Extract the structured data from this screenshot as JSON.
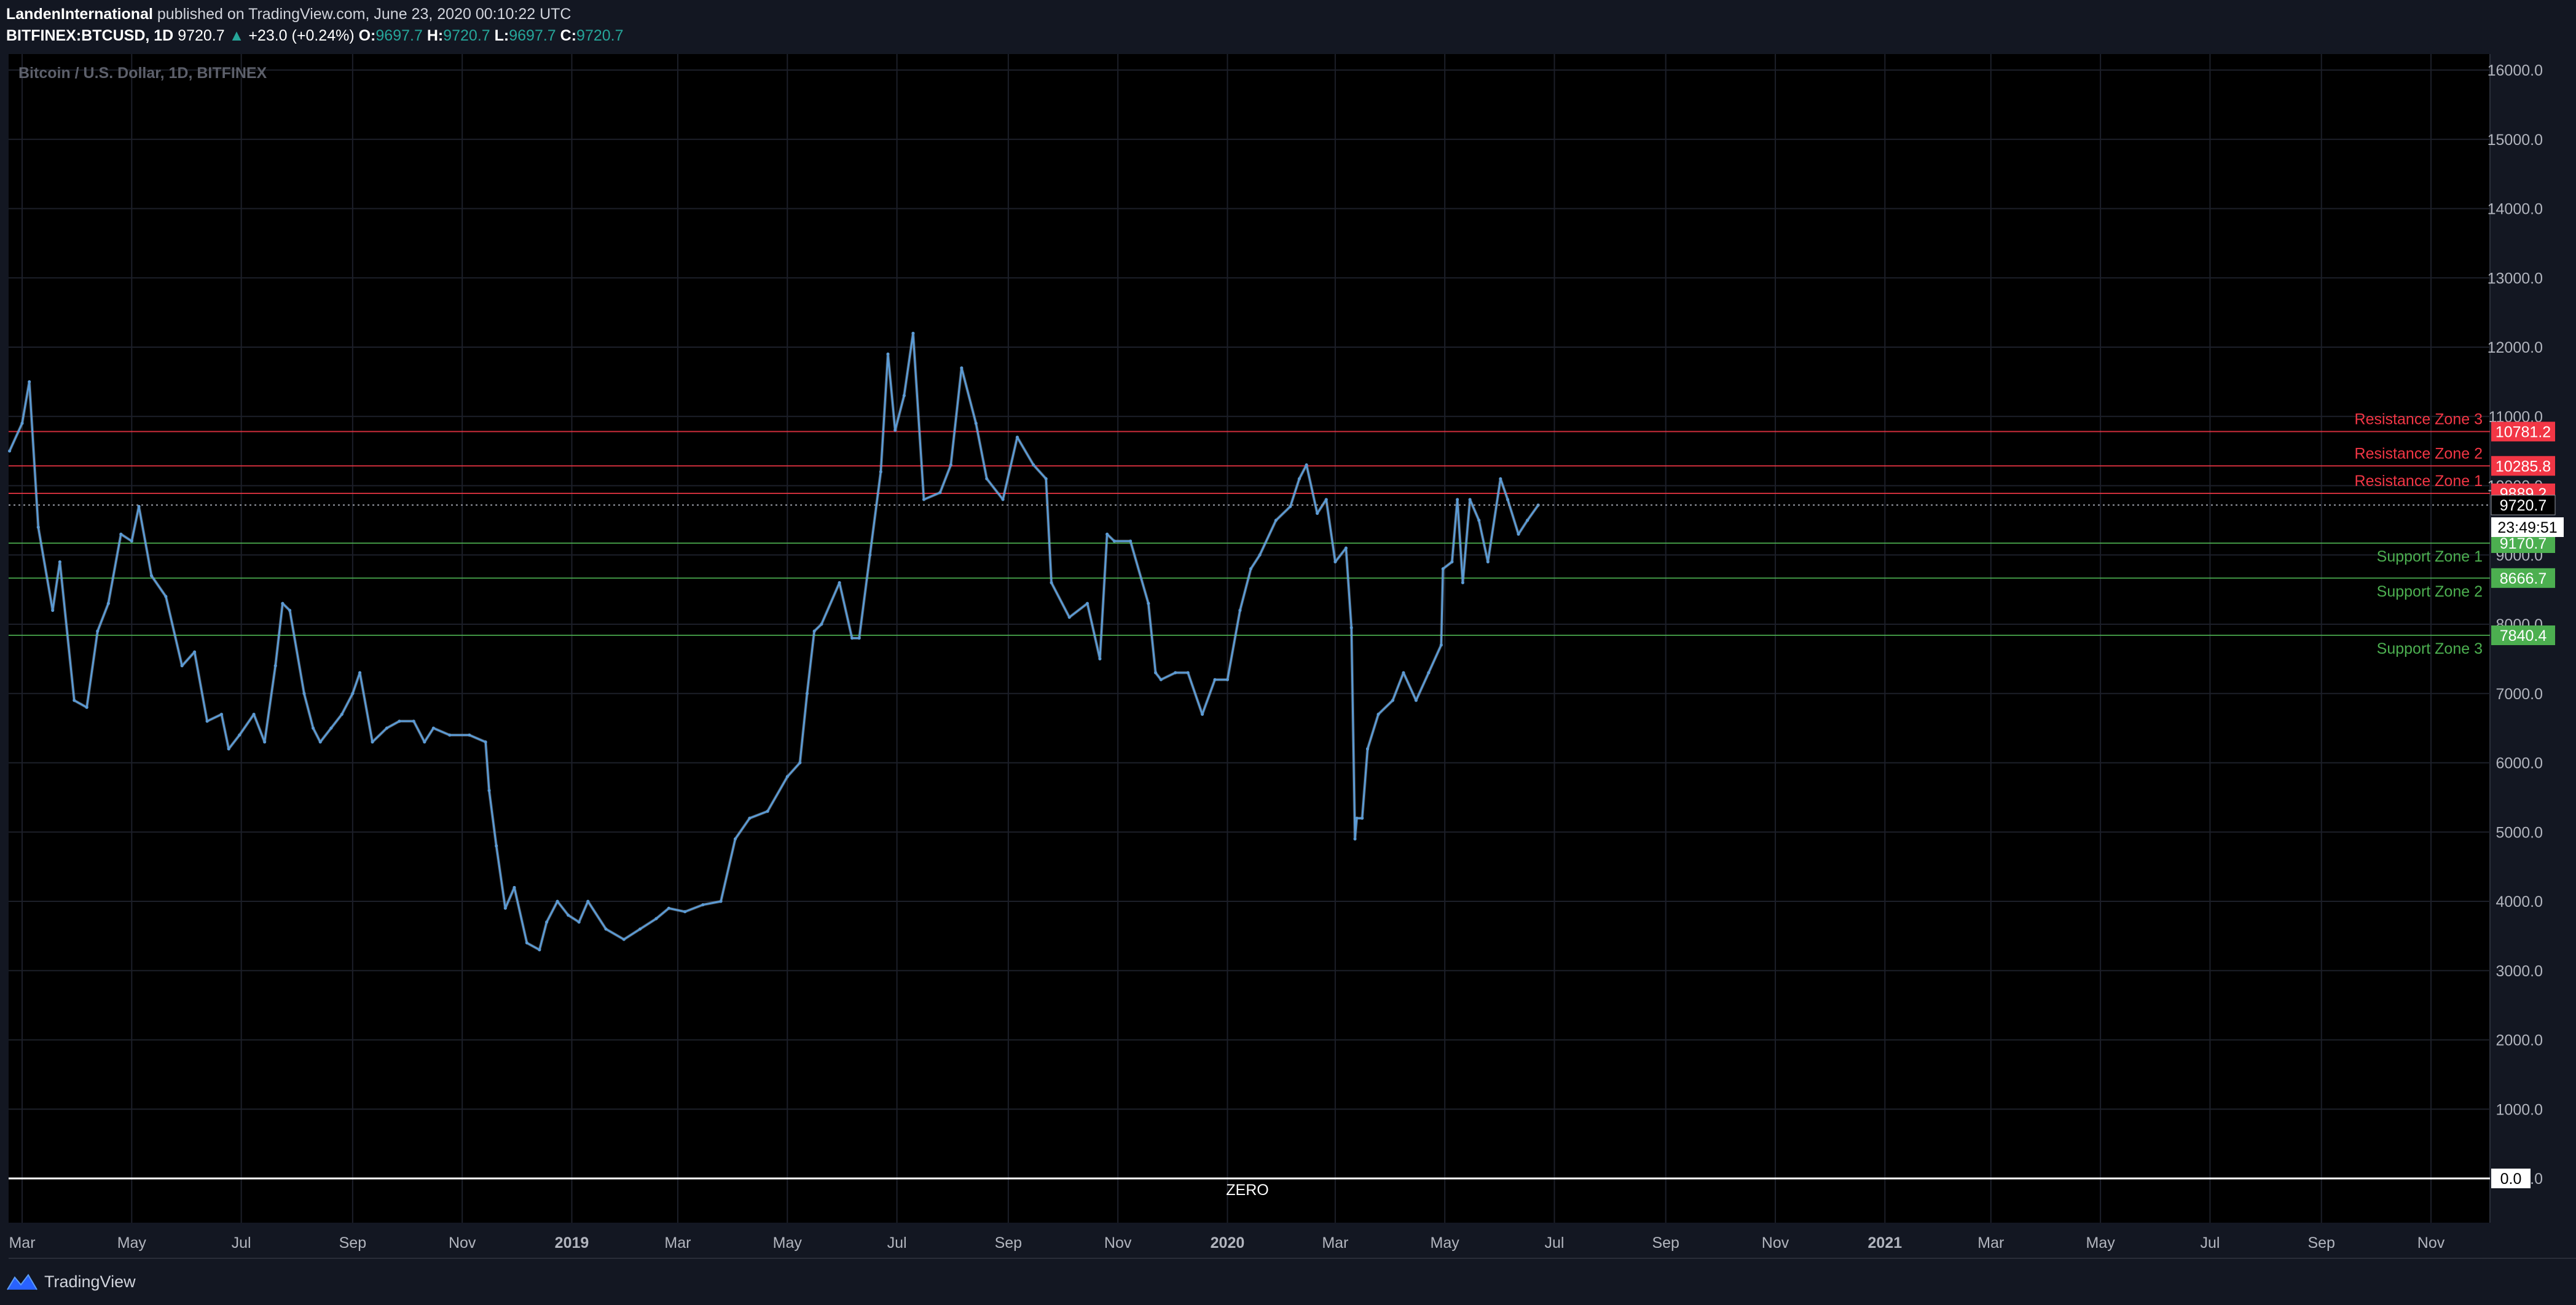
{
  "header": {
    "publisher": "LandenInternational",
    "publish_text": "published on TradingView.com, June 23, 2020 00:10:22 UTC",
    "symbol": "BITFINEX:BTCUSD, 1D",
    "last": "9720.7",
    "change_arrow": "▲",
    "change": "+23.0 (+0.24%)",
    "o_label": "O:",
    "o_value": "9697.7",
    "h_label": "H:",
    "h_value": "9720.7",
    "l_label": "L:",
    "l_value": "9697.7",
    "c_label": "C:",
    "c_value": "9720.7"
  },
  "footer": {
    "brand": "TradingView",
    "logo_icon": "tradingview-logo-icon"
  },
  "colors": {
    "background": "#000000",
    "frame": "#131722",
    "price_line": "#5b9bd5",
    "price_highlight": "#dfe7f5",
    "resistance": "#f23645",
    "support": "#4caf50",
    "grid": "#1c1f29"
  },
  "chart_data": {
    "type": "line",
    "title": "Bitcoin / U.S. Dollar, 1D, BITFINEX",
    "xlabel": "",
    "ylabel": "",
    "ylim": [
      0,
      16000
    ],
    "y_ticks": [
      "0.0",
      "1000.0",
      "2000.0",
      "3000.0",
      "4000.0",
      "5000.0",
      "6000.0",
      "7000.0",
      "8000.0",
      "9000.0",
      "10000.0",
      "11000.0",
      "12000.0",
      "13000.0",
      "14000.0",
      "15000.0",
      "16000.0"
    ],
    "x_ticks": [
      {
        "date": "2018-03-01",
        "label": "Mar"
      },
      {
        "date": "2018-05-01",
        "label": "May"
      },
      {
        "date": "2018-07-01",
        "label": "Jul"
      },
      {
        "date": "2018-09-01",
        "label": "Sep"
      },
      {
        "date": "2018-11-01",
        "label": "Nov"
      },
      {
        "date": "2019-01-01",
        "label": "2019"
      },
      {
        "date": "2019-03-01",
        "label": "Mar"
      },
      {
        "date": "2019-05-01",
        "label": "May"
      },
      {
        "date": "2019-07-01",
        "label": "Jul"
      },
      {
        "date": "2019-09-01",
        "label": "Sep"
      },
      {
        "date": "2019-11-01",
        "label": "Nov"
      },
      {
        "date": "2020-01-01",
        "label": "2020"
      },
      {
        "date": "2020-03-01",
        "label": "Mar"
      },
      {
        "date": "2020-05-01",
        "label": "May"
      },
      {
        "date": "2020-07-01",
        "label": "Jul"
      },
      {
        "date": "2020-09-01",
        "label": "Sep"
      },
      {
        "date": "2020-11-01",
        "label": "Nov"
      },
      {
        "date": "2021-01-01",
        "label": "2021"
      },
      {
        "date": "2021-03-01",
        "label": "Mar"
      },
      {
        "date": "2021-05-01",
        "label": "May"
      },
      {
        "date": "2021-07-01",
        "label": "Jul"
      },
      {
        "date": "2021-09-01",
        "label": "Sep"
      },
      {
        "date": "2021-11-01",
        "label": "Nov"
      }
    ],
    "series": [
      {
        "x": [
          "2018-02-22",
          "2018-03-01",
          "2018-03-05",
          "2018-03-10",
          "2018-03-18",
          "2018-03-22",
          "2018-03-30",
          "2018-04-06",
          "2018-04-12",
          "2018-04-18",
          "2018-04-25",
          "2018-05-01",
          "2018-05-05",
          "2018-05-12",
          "2018-05-20",
          "2018-05-29",
          "2018-06-05",
          "2018-06-12",
          "2018-06-20",
          "2018-06-24",
          "2018-06-30",
          "2018-07-08",
          "2018-07-14",
          "2018-07-20",
          "2018-07-24",
          "2018-07-28",
          "2018-08-05",
          "2018-08-10",
          "2018-08-14",
          "2018-08-20",
          "2018-08-26",
          "2018-09-01",
          "2018-09-05",
          "2018-09-12",
          "2018-09-20",
          "2018-09-27",
          "2018-10-05",
          "2018-10-11",
          "2018-10-16",
          "2018-10-25",
          "2018-11-05",
          "2018-11-14",
          "2018-11-16",
          "2018-11-20",
          "2018-11-25",
          "2018-11-30",
          "2018-12-07",
          "2018-12-14",
          "2018-12-18",
          "2018-12-24",
          "2018-12-30",
          "2019-01-05",
          "2019-01-10",
          "2019-01-20",
          "2019-01-30",
          "2019-02-08",
          "2019-02-17",
          "2019-02-24",
          "2019-03-05",
          "2019-03-15",
          "2019-03-25",
          "2019-04-02",
          "2019-04-10",
          "2019-04-20",
          "2019-05-01",
          "2019-05-08",
          "2019-05-12",
          "2019-05-16",
          "2019-05-20",
          "2019-05-30",
          "2019-06-06",
          "2019-06-10",
          "2019-06-16",
          "2019-06-22",
          "2019-06-26",
          "2019-06-30",
          "2019-07-05",
          "2019-07-10",
          "2019-07-16",
          "2019-07-25",
          "2019-07-31",
          "2019-08-06",
          "2019-08-14",
          "2019-08-20",
          "2019-08-29",
          "2019-09-06",
          "2019-09-15",
          "2019-09-22",
          "2019-09-25",
          "2019-10-05",
          "2019-10-15",
          "2019-10-22",
          "2019-10-26",
          "2019-10-30",
          "2019-11-08",
          "2019-11-18",
          "2019-11-22",
          "2019-11-25",
          "2019-12-03",
          "2019-12-10",
          "2019-12-18",
          "2019-12-25",
          "2020-01-01",
          "2020-01-08",
          "2020-01-14",
          "2020-01-19",
          "2020-01-28",
          "2020-02-05",
          "2020-02-10",
          "2020-02-14",
          "2020-02-20",
          "2020-02-25",
          "2020-03-01",
          "2020-03-07",
          "2020-03-10",
          "2020-03-12",
          "2020-03-13",
          "2020-03-16",
          "2020-03-19",
          "2020-03-25",
          "2020-04-02",
          "2020-04-08",
          "2020-04-15",
          "2020-04-22",
          "2020-04-29",
          "2020-04-30",
          "2020-05-05",
          "2020-05-08",
          "2020-05-11",
          "2020-05-15",
          "2020-05-20",
          "2020-05-25",
          "2020-06-01",
          "2020-06-05",
          "2020-06-11",
          "2020-06-16",
          "2020-06-22"
        ],
        "values": [
          10500,
          10900,
          11500,
          9400,
          8200,
          8900,
          6900,
          6800,
          7900,
          8300,
          9300,
          9200,
          9700,
          8700,
          8400,
          7400,
          7600,
          6600,
          6700,
          6200,
          6400,
          6700,
          6300,
          7400,
          8300,
          8200,
          7000,
          6500,
          6300,
          6500,
          6700,
          7000,
          7300,
          6300,
          6500,
          6600,
          6600,
          6300,
          6500,
          6400,
          6400,
          6300,
          5600,
          4800,
          3900,
          4200,
          3400,
          3300,
          3700,
          4000,
          3800,
          3700,
          4000,
          3600,
          3450,
          3600,
          3750,
          3900,
          3850,
          3950,
          4000,
          4900,
          5200,
          5300,
          5800,
          6000,
          7000,
          7900,
          8000,
          8600,
          7800,
          7800,
          9000,
          10200,
          11900,
          10800,
          11300,
          12200,
          9800,
          9900,
          10300,
          11700,
          10900,
          10100,
          9800,
          10700,
          10300,
          10100,
          8600,
          8100,
          8300,
          7500,
          9300,
          9200,
          9200,
          8300,
          7300,
          7200,
          7300,
          7300,
          6700,
          7200,
          7200,
          8200,
          8800,
          9000,
          9500,
          9700,
          10100,
          10300,
          9600,
          9800,
          8900,
          9100,
          7950,
          4900,
          5200,
          5200,
          6200,
          6700,
          6900,
          7300,
          6900,
          7300,
          7700,
          8800,
          8900,
          9800,
          8600,
          9800,
          9500,
          8900,
          10100,
          9800,
          9300,
          9500,
          9720
        ]
      }
    ],
    "levels": [
      {
        "label": "Resistance Zone 3",
        "value": 10781.2,
        "value_text": "10781.2",
        "kind": "resistance"
      },
      {
        "label": "Resistance Zone 2",
        "value": 10285.8,
        "value_text": "10285.8",
        "kind": "resistance"
      },
      {
        "label": "Resistance Zone 1",
        "value": 9889.2,
        "value_text": "9889.2",
        "kind": "resistance"
      },
      {
        "label": "Support Zone 1",
        "value": 9170.7,
        "value_text": "9170.7",
        "kind": "support"
      },
      {
        "label": "Support Zone 2",
        "value": 8666.7,
        "value_text": "8666.7",
        "kind": "support"
      },
      {
        "label": "Support Zone 3",
        "value": 7840.4,
        "value_text": "7840.4",
        "kind": "support"
      }
    ],
    "zero_line": {
      "label": "ZERO",
      "value": 0,
      "value_text": "0.0"
    },
    "last_price": {
      "value": 9720.7,
      "value_text": "9720.7",
      "countdown": "23:49:51"
    },
    "grid": true
  }
}
